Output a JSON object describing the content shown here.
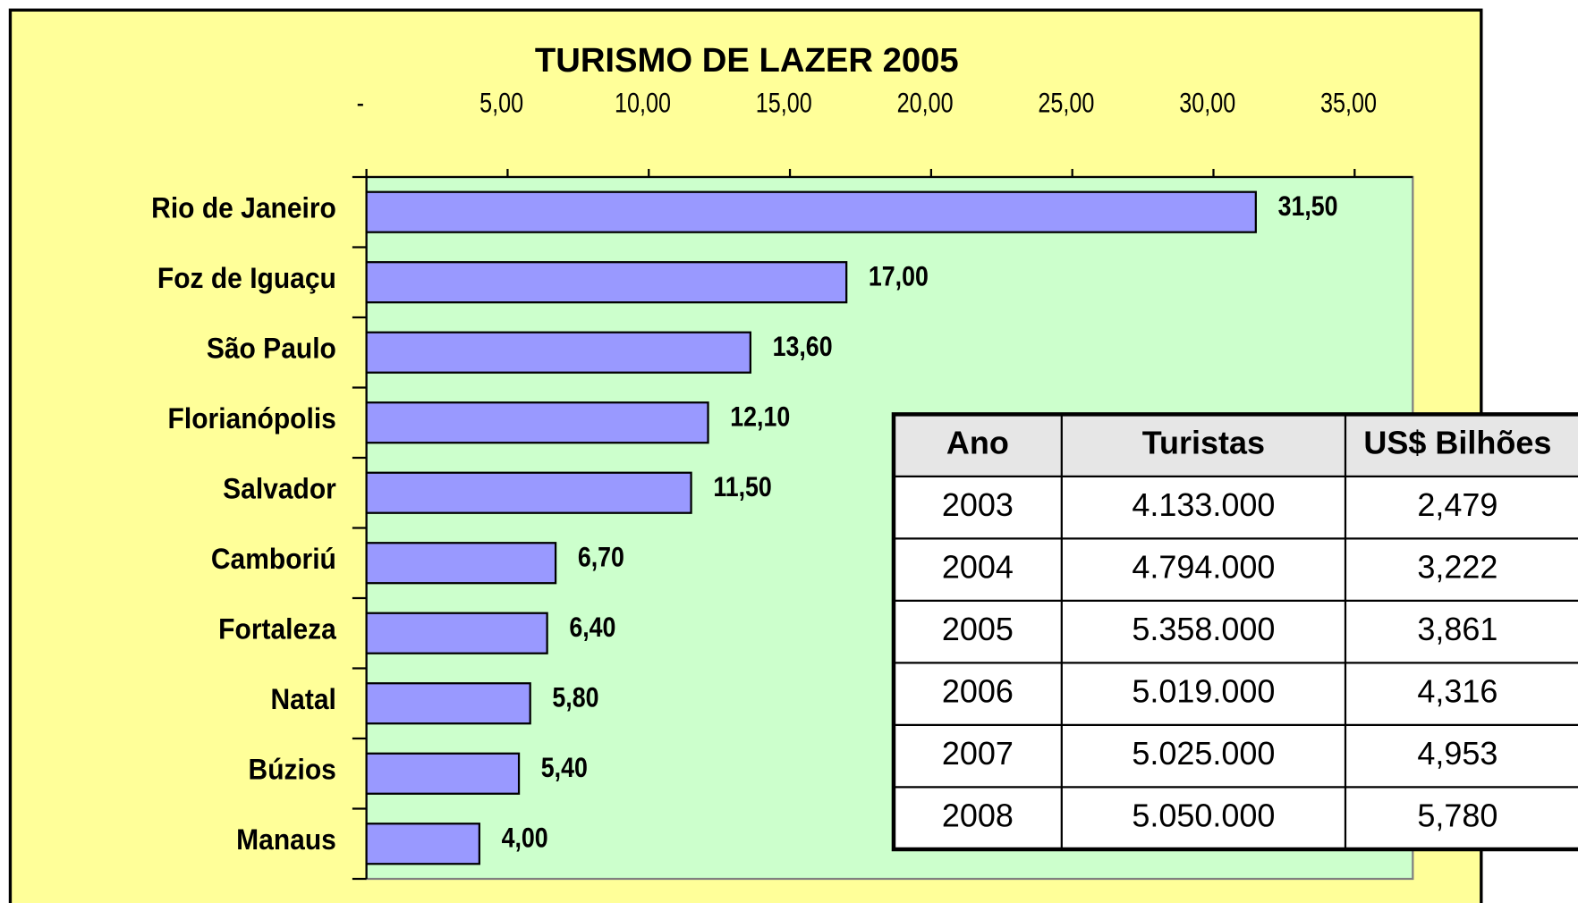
{
  "chart_data": {
    "type": "barh",
    "title": "TURISMO DE LAZER 2005",
    "categories": [
      "Rio de Janeiro",
      "Foz de Iguaçu",
      "São Paulo",
      "Florianópolis",
      "Salvador",
      "Camboriú",
      "Fortaleza",
      "Natal",
      "Búzios",
      "Manaus"
    ],
    "values": [
      31.5,
      17,
      13.6,
      12.1,
      11.5,
      6.7,
      6.4,
      5.8,
      5.4,
      4
    ],
    "value_labels": [
      "31,50",
      "17,00",
      "13,60",
      "12,10",
      "11,50",
      "6,70",
      "6,40",
      "5,80",
      "5,40",
      "4,00"
    ],
    "color": "#9999ff",
    "xlim": [
      0,
      37.06
    ],
    "xticks": [
      {
        "value": 0,
        "label": "-"
      },
      {
        "value": 5,
        "label": "5,00"
      },
      {
        "value": 10,
        "label": "10,00"
      },
      {
        "value": 15,
        "label": "15,00"
      },
      {
        "value": 20,
        "label": "20,00"
      },
      {
        "value": 25,
        "label": "25,00"
      },
      {
        "value": 30,
        "label": "30,00"
      },
      {
        "value": 35,
        "label": "35,00"
      }
    ],
    "grid": false
  },
  "table": {
    "header": [
      "Ano",
      "Turistas",
      "US$ Bilhões"
    ],
    "rows": [
      [
        "2003",
        "4.133.000",
        "2,479"
      ],
      [
        "2004",
        "4.794.000",
        "3,222"
      ],
      [
        "2005",
        "5.358.000",
        "3,861"
      ],
      [
        "2006",
        "5.019.000",
        "4,316"
      ],
      [
        "2007",
        "5.025.000",
        "4,953"
      ],
      [
        "2008",
        "5.050.000",
        "5,780"
      ]
    ]
  }
}
